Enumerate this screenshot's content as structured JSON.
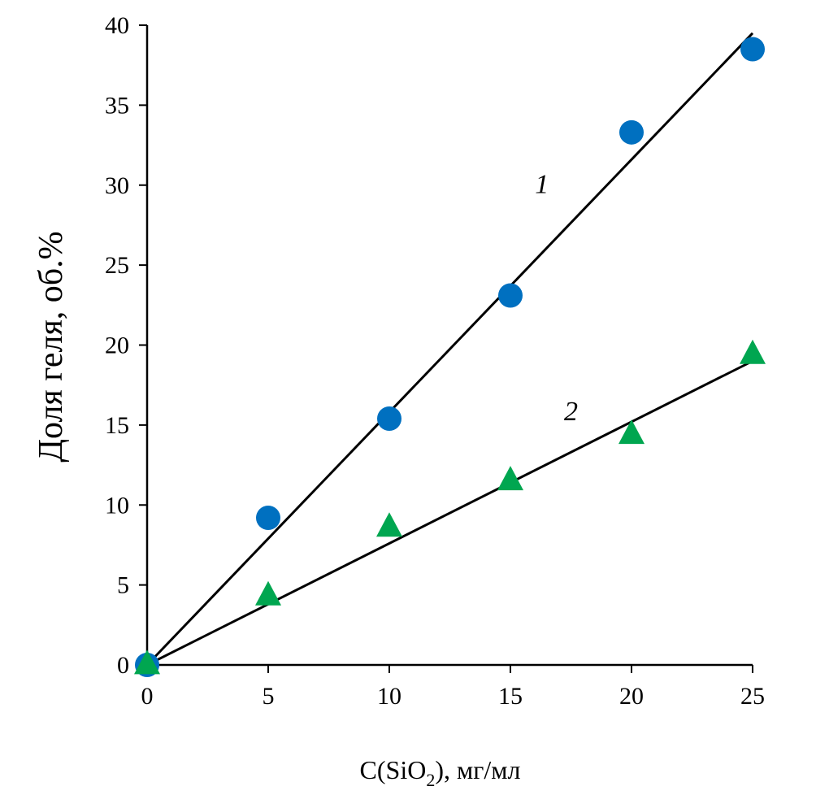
{
  "chart_data": {
    "type": "scatter",
    "title": "",
    "xlabel_prefix": "C(SiO",
    "xlabel_sub": "2",
    "xlabel_suffix": "), мг/мл",
    "ylabel": "Доля геля, об.%",
    "xlim": [
      0,
      25
    ],
    "ylim": [
      0,
      40
    ],
    "x_ticks": [
      "0",
      "5",
      "10",
      "15",
      "20",
      "25"
    ],
    "y_ticks": [
      "0",
      "5",
      "10",
      "15",
      "20",
      "25",
      "30",
      "35",
      "40"
    ],
    "grid": false,
    "series": [
      {
        "name": "1",
        "marker": "circle",
        "color": "#0070C0",
        "x": [
          0,
          5,
          10,
          15,
          20,
          25
        ],
        "y": [
          0,
          9.2,
          15.4,
          23.1,
          33.3,
          38.5
        ],
        "trendline": {
          "slope": 1.58,
          "intercept": 0
        }
      },
      {
        "name": "2",
        "marker": "triangle",
        "color": "#00A650",
        "x": [
          0,
          5,
          10,
          15,
          20,
          25
        ],
        "y": [
          0,
          4.3,
          8.6,
          11.5,
          14.4,
          19.4
        ],
        "trendline": {
          "slope": 0.76,
          "intercept": 0
        }
      }
    ],
    "annotations": [
      {
        "text": "1",
        "series": 0,
        "x": 16.3,
        "y": 29.5
      },
      {
        "text": "2",
        "series": 1,
        "x": 17.5,
        "y": 15.3
      }
    ]
  }
}
